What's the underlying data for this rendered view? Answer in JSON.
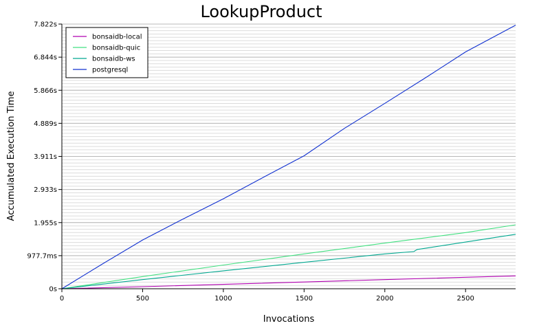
{
  "chart_data": {
    "type": "line",
    "title": "LookupProduct",
    "xlabel": "Invocations",
    "ylabel": "Accumulated Execution Time",
    "xlim": [
      0,
      2810
    ],
    "ylim": [
      0,
      7.822
    ],
    "x_ticks": [
      0,
      500,
      1000,
      1500,
      2000,
      2500
    ],
    "x_tick_labels": [
      "0",
      "500",
      "1000",
      "1500",
      "2000",
      "2500"
    ],
    "y_ticks": [
      0,
      0.9777,
      1.955,
      2.933,
      3.911,
      4.889,
      5.866,
      6.844,
      7.822
    ],
    "y_tick_labels": [
      "0s",
      "977.7ms",
      "1.955s",
      "2.933s",
      "3.911s",
      "4.889s",
      "5.866s",
      "6.844s",
      "7.822s"
    ],
    "grid": "horizontal-minor",
    "legend": "top-left",
    "series": [
      {
        "name": "bonsaidb-local",
        "color": "#b000b0",
        "x": [
          0,
          500,
          1000,
          1500,
          2000,
          2500,
          2810
        ],
        "y": [
          0,
          0.06,
          0.13,
          0.2,
          0.27,
          0.34,
          0.38
        ]
      },
      {
        "name": "bonsaidb-quic",
        "color": "#40e080",
        "x": [
          0,
          500,
          1000,
          1500,
          2000,
          2500,
          2810
        ],
        "y": [
          0,
          0.36,
          0.7,
          1.03,
          1.35,
          1.66,
          1.89
        ]
      },
      {
        "name": "bonsaidb-ws",
        "color": "#00a890",
        "x": [
          0,
          500,
          1000,
          1500,
          2000,
          2180,
          2200,
          2500,
          2810
        ],
        "y": [
          0,
          0.27,
          0.53,
          0.78,
          1.03,
          1.1,
          1.16,
          1.38,
          1.61
        ]
      },
      {
        "name": "postgresql",
        "color": "#1030d0",
        "x": [
          0,
          250,
          500,
          750,
          1000,
          1250,
          1500,
          1750,
          2000,
          2250,
          2500,
          2810
        ],
        "y": [
          0,
          0.73,
          1.44,
          2.06,
          2.66,
          3.3,
          3.93,
          4.74,
          5.48,
          6.23,
          7.0,
          7.79
        ]
      }
    ]
  }
}
